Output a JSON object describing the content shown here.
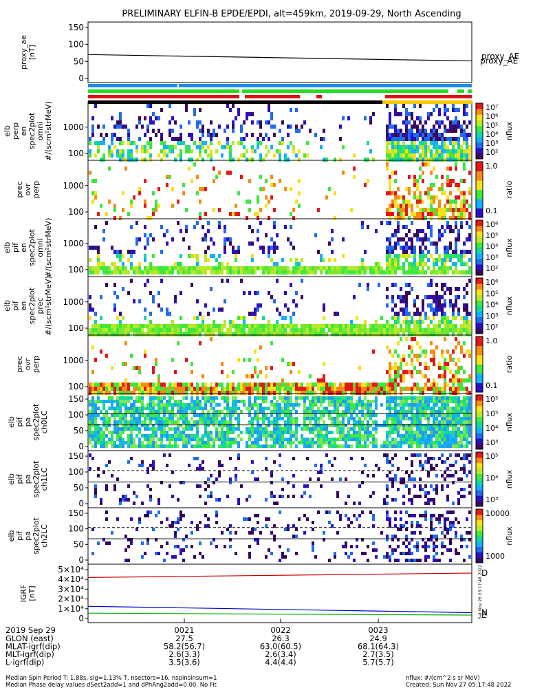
{
  "title": "PRELIMINARY ELFIN-B EPDE/EPDI, alt=459km, 2019-09-29, North Ascending",
  "chart_data": [
    {
      "type": "line",
      "panel": "proxy_ae",
      "ylabel_lines": [
        "proxy_ae",
        "[nT]"
      ],
      "yticks": [
        "0",
        "50",
        "100",
        "150"
      ],
      "ylim": [
        0,
        160
      ],
      "series": [
        {
          "name": "proxy_AE",
          "color": "#000000",
          "y_start": 75,
          "y_end": 55
        }
      ]
    },
    {
      "type": "heatmap",
      "panel": "elb_perp_en",
      "ylabel_lines": [
        "elb",
        "perp",
        "en",
        "spec2plot",
        "omni",
        "#/(scm²strMeV)"
      ],
      "yticks": [
        "100",
        "1000"
      ],
      "colorbar": {
        "labels": [
          "10⁷",
          "10⁶",
          "10⁵",
          "10⁴",
          "10³",
          "10²"
        ],
        "title": "nflux"
      }
    },
    {
      "type": "heatmap",
      "panel": "elb_prec_ovr_perp",
      "ylabel_lines": [
        "prec",
        "ovr",
        "perp"
      ],
      "yticks": [
        "100",
        "1000"
      ],
      "colorbar": {
        "labels": [
          "1.0",
          "0.1"
        ],
        "title": "ratio"
      }
    },
    {
      "type": "heatmap",
      "panel": "elb_pif_en_omni",
      "ylabel_lines": [
        "elb",
        "pif",
        "en",
        "spec2plot",
        "omni",
        "#/(scm²strMeV)"
      ],
      "yticks": [
        "100",
        "1000"
      ],
      "colorbar": {
        "labels": [
          "10⁶",
          "10⁵",
          "10⁴",
          "10³",
          "10²"
        ],
        "title": "nflux"
      }
    },
    {
      "type": "heatmap",
      "panel": "elb_pif_en_prec",
      "ylabel_lines": [
        "elb",
        "pif",
        "en",
        "spec2plot",
        "prec",
        "#/(scm²strMeV)"
      ],
      "yticks": [
        "100",
        "1000"
      ],
      "colorbar": {
        "labels": [
          "10⁶",
          "10⁵",
          "10⁴",
          "10³",
          "10²"
        ],
        "title": "nflux"
      }
    },
    {
      "type": "heatmap",
      "panel": "pif_prec_ovr_perp",
      "ylabel_lines": [
        "prec",
        "ovr",
        "perp"
      ],
      "yticks": [
        "100",
        "1000"
      ],
      "colorbar": {
        "labels": [
          "1.0",
          "0.1"
        ],
        "title": "ratio"
      }
    },
    {
      "type": "heatmap",
      "panel": "pa_ch0LC",
      "ylabel_lines": [
        "elb",
        "pif",
        "pa",
        "spec2plot",
        "ch0LC"
      ],
      "yticks": [
        "0",
        "50",
        "100",
        "150"
      ],
      "colorbar": {
        "labels": [
          "10⁵",
          "10⁵",
          "10⁴",
          "10³"
        ],
        "title": "nflux"
      }
    },
    {
      "type": "heatmap",
      "panel": "pa_ch1LC",
      "ylabel_lines": [
        "elb",
        "pif",
        "pa",
        "spec2plot",
        "ch1LC"
      ],
      "yticks": [
        "0",
        "50",
        "100",
        "150"
      ],
      "colorbar": {
        "labels": [
          "10⁵",
          "10⁴",
          "10³"
        ],
        "title": "nflux"
      }
    },
    {
      "type": "heatmap",
      "panel": "pa_ch2LC",
      "ylabel_lines": [
        "elb",
        "pif",
        "pa",
        "spec2plot",
        "ch2LC"
      ],
      "yticks": [
        "0",
        "50",
        "100",
        "150"
      ],
      "colorbar": {
        "labels": [
          "10000",
          "1000"
        ],
        "title": "nflux"
      }
    },
    {
      "type": "line",
      "panel": "igrf",
      "ylabel_lines": [
        "IGRF",
        "[nT]"
      ],
      "yticks": [
        "0",
        "1×10⁴",
        "2×10⁴",
        "3×10⁴",
        "4×10⁴",
        "5×10⁴"
      ],
      "ylim": [
        0,
        50000
      ],
      "series": [
        {
          "name": "D",
          "color": "#cc0000",
          "y_start": 42000,
          "y_end": 46500
        },
        {
          "name": "N",
          "color": "#0000cc",
          "y_start": 12500,
          "y_end": 6000
        },
        {
          "name": "E",
          "color": "#00aa00",
          "y_start": 5500,
          "y_end": 3500
        }
      ]
    }
  ],
  "side_stamp": "Sat Nov 26 23:17:48 2022",
  "footer": {
    "date": "2019 Sep 29",
    "ticks": [
      "0021",
      "0022",
      "0023"
    ],
    "rows": [
      {
        "label": "GLON (east)",
        "values": [
          "27.5",
          "26.3",
          "24.9"
        ]
      },
      {
        "label": "MLAT-igrf(dip)",
        "values": [
          "58.2(56.7)",
          "63.0(60.5)",
          "68.1(64.3)"
        ]
      },
      {
        "label": "MLT-igrf(dip)",
        "values": [
          "2.6(3.3)",
          "2.6(3.4)",
          "2.7(3.5)"
        ]
      },
      {
        "label": "L-igrf(dip)",
        "values": [
          "3.5(3.6)",
          "4.4(4.4)",
          "5.7(5.7)"
        ]
      }
    ],
    "note1": "Median Spin Period T: 1.88s, sig=1.13% T, nsectors=16, nspinsinsum=1",
    "note2": "Median Phase delay values dSect2add=1 and dPhAng2add=0.00, No Fit",
    "units": "nflux: #/(cm^2 s sr MeV)",
    "created": "Created: Sun Nov 27 05:17:48 2022"
  }
}
